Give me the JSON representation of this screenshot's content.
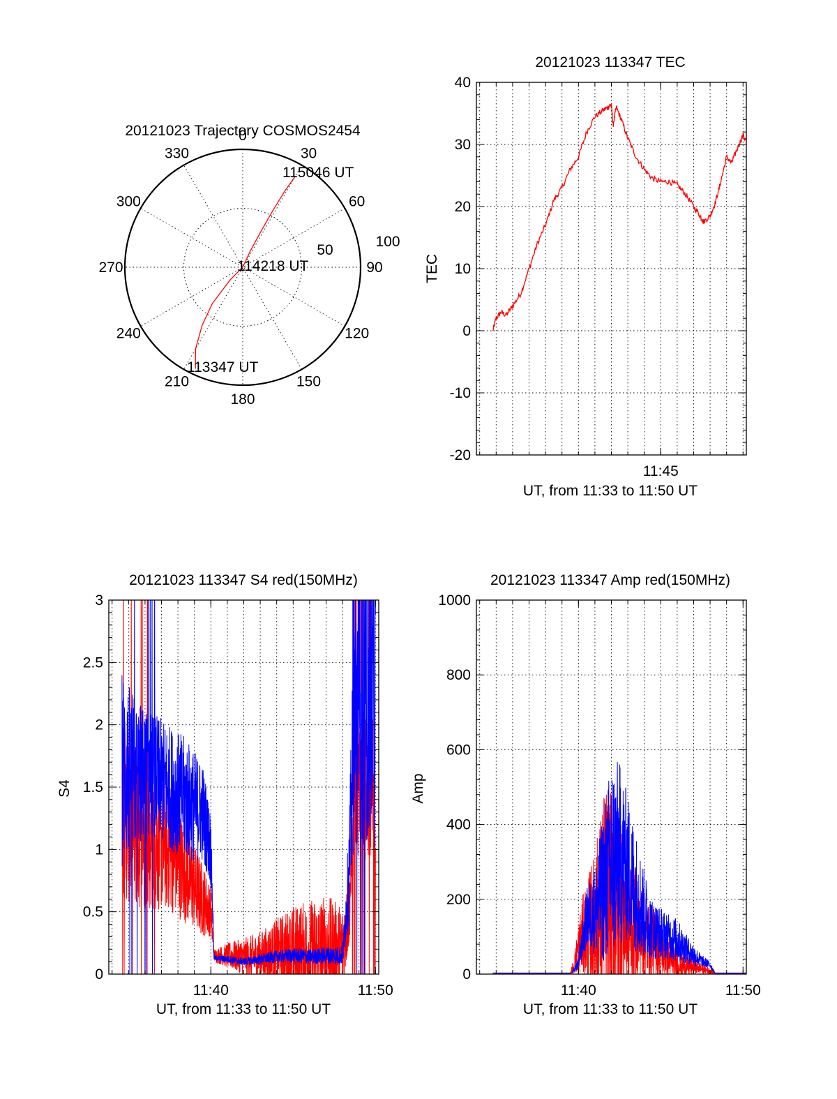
{
  "colors": {
    "red": "#ff0000",
    "blue": "#0000ff",
    "axis": "#000000"
  },
  "chart_data": [
    {
      "id": "trajectory",
      "type": "polar",
      "title": "20121023 Trajectory COSMOS2454",
      "angle_labels": [
        "0",
        "30",
        "60",
        "90",
        "120",
        "150",
        "180",
        "210",
        "240",
        "270",
        "300",
        "330"
      ],
      "radial_labels": [
        "50",
        "100"
      ],
      "rlim": [
        0,
        100
      ],
      "series": [
        {
          "color": "red",
          "points": [
            [
              205,
              95
            ],
            [
              210,
              80
            ],
            [
              215,
              60
            ],
            [
              220,
              40
            ],
            [
              225,
              15
            ],
            [
              0,
              0
            ],
            [
              25,
              15
            ],
            [
              27,
              35
            ],
            [
              28,
              55
            ],
            [
              29,
              75
            ],
            [
              30,
              89
            ]
          ]
        }
      ],
      "annotations": [
        {
          "text": "113347 UT",
          "az": 195,
          "r": 88
        },
        {
          "text": "114218 UT",
          "az": 90,
          "r": 2
        },
        {
          "text": "115046 UT",
          "az": 38,
          "r": 90
        }
      ]
    },
    {
      "id": "tec",
      "type": "line",
      "title": "20121023 113347 TEC",
      "xlabel": "UT, from 11:33 to 11:50 UT",
      "ylabel": "TEC",
      "xlim": [
        33.8,
        50.2
      ],
      "ylim": [
        -20,
        40
      ],
      "yticks": [
        "-20",
        "-10",
        "0",
        "10",
        "20",
        "30",
        "40"
      ],
      "xticks": [
        {
          "x": 45,
          "label": "11:45"
        }
      ],
      "series": [
        {
          "color": "red",
          "x": [
            34.8,
            35.0,
            35.3,
            35.6,
            36.0,
            36.5,
            37.0,
            37.5,
            38.0,
            38.5,
            39.0,
            39.5,
            40.0,
            40.5,
            41.0,
            41.5,
            41.8,
            42.0,
            42.1,
            42.3,
            42.6,
            43.0,
            43.5,
            44.0,
            44.5,
            45.0,
            45.5,
            46.0,
            46.5,
            47.0,
            47.4,
            47.6,
            48.0,
            48.3,
            48.6,
            49.0,
            49.3,
            49.6,
            50.0,
            50.2
          ],
          "y": [
            0,
            2,
            3,
            2.5,
            4,
            6,
            10,
            14,
            17,
            21,
            23,
            26,
            28,
            32,
            34.5,
            35.5,
            36,
            36.5,
            33,
            36,
            34,
            31,
            28,
            26,
            24.5,
            24,
            24,
            23.5,
            22,
            20,
            18.5,
            17.5,
            18.5,
            20.5,
            23.5,
            28,
            27,
            29,
            31.5,
            30.5
          ]
        }
      ]
    },
    {
      "id": "s4",
      "type": "line",
      "title": "20121023 113347 S4 red(150MHz)",
      "xlabel": "UT, from 11:33 to 11:50 UT",
      "ylabel": "S4",
      "xlim": [
        33.8,
        50.2
      ],
      "ylim": [
        0,
        3
      ],
      "yticks": [
        "0",
        "0.5",
        "1",
        "1.5",
        "2",
        "2.5",
        "3"
      ],
      "xticks": [
        {
          "x": 40,
          "label": "11:40"
        },
        {
          "x": 50,
          "label": "11:50"
        }
      ],
      "series": [
        {
          "name": "red",
          "color": "red",
          "env_x": [
            34.6,
            35.5,
            36.5,
            37.5,
            38.5,
            39.5,
            40.0,
            40.2,
            41.0,
            42.0,
            43.0,
            44.0,
            45.0,
            46.0,
            47.0,
            48.0,
            48.4,
            48.7,
            49.2,
            50.0
          ],
          "base": [
            1.3,
            1.2,
            1.1,
            1.0,
            0.8,
            0.6,
            0.5,
            0.15,
            0.15,
            0.14,
            0.14,
            0.15,
            0.17,
            0.18,
            0.19,
            0.2,
            0.5,
            1.3,
            1.5,
            1.5
          ],
          "amp": [
            0.7,
            0.7,
            0.6,
            0.5,
            0.4,
            0.3,
            0.2,
            0.05,
            0.1,
            0.15,
            0.2,
            0.3,
            0.38,
            0.42,
            0.45,
            0.35,
            0.3,
            0.4,
            0.6,
            0.6
          ]
        },
        {
          "name": "blue",
          "color": "blue",
          "env_x": [
            34.6,
            35.5,
            36.5,
            37.5,
            38.5,
            39.5,
            40.0,
            40.2,
            41.0,
            42.0,
            43.0,
            44.0,
            45.0,
            46.0,
            47.0,
            48.0,
            48.4,
            48.7,
            49.2,
            50.0
          ],
          "base": [
            1.65,
            1.6,
            1.6,
            1.5,
            1.4,
            1.3,
            1.0,
            0.13,
            0.12,
            0.1,
            0.12,
            0.14,
            0.15,
            0.14,
            0.15,
            0.15,
            0.8,
            2.0,
            2.2,
            2.2
          ],
          "amp": [
            0.8,
            0.6,
            0.5,
            0.5,
            0.5,
            0.4,
            0.3,
            0.02,
            0.03,
            0.03,
            0.04,
            0.05,
            0.06,
            0.06,
            0.07,
            0.08,
            0.4,
            1.0,
            1.2,
            1.2
          ]
        }
      ]
    },
    {
      "id": "amp",
      "type": "line",
      "title": "20121023 113347 Amp red(150MHz)",
      "xlabel": "UT, from 11:33 to 11:50 UT",
      "ylabel": "Amp",
      "xlim": [
        33.8,
        50.2
      ],
      "ylim": [
        0,
        1000
      ],
      "yticks": [
        "0",
        "200",
        "400",
        "600",
        "800",
        "1000"
      ],
      "xticks": [
        {
          "x": 40,
          "label": "11:40"
        },
        {
          "x": 50,
          "label": "11:50"
        }
      ],
      "series": [
        {
          "name": "red",
          "color": "red",
          "env_x": [
            34.8,
            39.5,
            39.7,
            40.2,
            41.0,
            41.6,
            42.0,
            42.5,
            43.0,
            43.5,
            44.0,
            44.6,
            45.0,
            45.5,
            46.0,
            46.5,
            47.0,
            47.5,
            48.2,
            48.3,
            50.2
          ],
          "base": [
            2,
            2,
            20,
            100,
            130,
            180,
            180,
            170,
            150,
            130,
            100,
            80,
            60,
            40,
            25,
            20,
            20,
            15,
            5,
            2,
            2
          ],
          "amp": [
            0,
            0,
            20,
            100,
            200,
            330,
            300,
            250,
            200,
            150,
            120,
            90,
            70,
            50,
            40,
            30,
            20,
            15,
            5,
            0,
            0
          ]
        },
        {
          "name": "blue",
          "color": "blue",
          "env_x": [
            34.8,
            39.6,
            40.0,
            40.5,
            41.0,
            41.5,
            42.0,
            42.5,
            43.0,
            43.5,
            44.0,
            44.5,
            45.0,
            45.5,
            46.0,
            46.5,
            47.0,
            47.5,
            48.0,
            48.3,
            50.2
          ],
          "base": [
            3,
            3,
            30,
            150,
            170,
            230,
            300,
            320,
            280,
            220,
            160,
            120,
            110,
            100,
            90,
            70,
            50,
            35,
            25,
            3,
            3
          ],
          "amp": [
            0,
            0,
            20,
            80,
            120,
            200,
            280,
            250,
            200,
            160,
            120,
            80,
            70,
            60,
            60,
            40,
            30,
            15,
            10,
            0,
            0
          ]
        }
      ]
    }
  ]
}
